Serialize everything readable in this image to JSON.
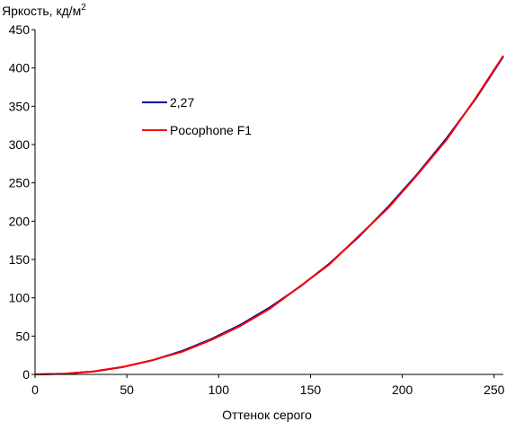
{
  "chart_data": {
    "type": "line",
    "title": "",
    "xlabel": "Оттенок серого",
    "ylabel_main": "Яркость, кд/м",
    "ylabel_sup": "2",
    "xlim": [
      0,
      255
    ],
    "ylim": [
      0,
      450
    ],
    "xticks": [
      0,
      50,
      100,
      150,
      200,
      250
    ],
    "yticks": [
      0,
      50,
      100,
      150,
      200,
      250,
      300,
      350,
      400,
      450
    ],
    "grid": false,
    "legend_position": "center-left",
    "series": [
      {
        "name": "2,27",
        "color": "#0000a0",
        "x": [
          0,
          16,
          32,
          48,
          64,
          80,
          96,
          112,
          128,
          144,
          160,
          176,
          192,
          208,
          224,
          240,
          255
        ],
        "y": [
          0,
          0.8,
          3.9,
          9.7,
          18.5,
          30.6,
          46,
          64.9,
          87.6,
          114,
          144,
          179,
          218,
          261,
          308,
          360,
          415
        ]
      },
      {
        "name": "Pocophone F1",
        "color": "#ff0000",
        "x": [
          0,
          16,
          32,
          48,
          64,
          80,
          96,
          112,
          128,
          144,
          160,
          176,
          192,
          208,
          224,
          240,
          255
        ],
        "y": [
          0,
          0.8,
          4,
          10,
          18.6,
          29.5,
          45,
          63.5,
          86,
          114.5,
          143,
          180,
          216.5,
          260,
          306,
          361,
          416
        ]
      }
    ]
  }
}
